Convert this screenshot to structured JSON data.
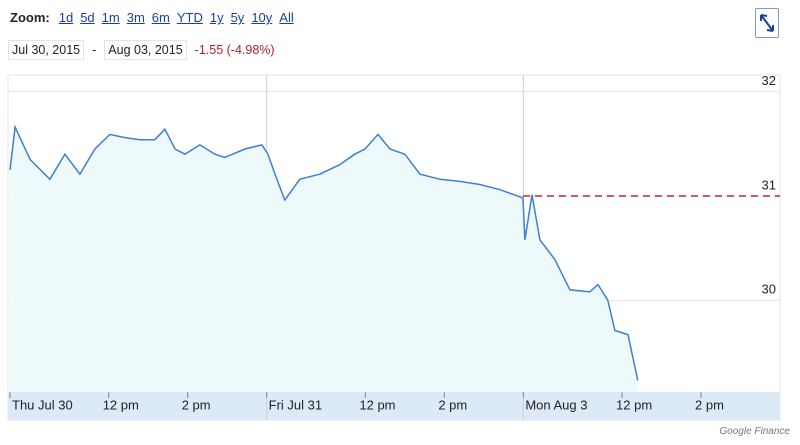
{
  "header": {
    "zoom_label": "Zoom:",
    "zoom_options": [
      "1d",
      "5d",
      "1m",
      "3m",
      "6m",
      "YTD",
      "1y",
      "5y",
      "10y",
      "All"
    ],
    "start_date": "Jul 30, 2015",
    "separator": "-",
    "end_date": "Aug 03, 2015",
    "change": "-1.55 (-4.98%)"
  },
  "chart_data": {
    "type": "line",
    "color": "#3d7fd0",
    "fill": "#eef9fb",
    "x": [
      0,
      0.13,
      0.51,
      1.01,
      1.39,
      1.77,
      2.15,
      2.53,
      2.91,
      3.29,
      3.67,
      3.92,
      4.18,
      4.43,
      4.81,
      5.19,
      5.44,
      5.95,
      6.38,
      6.53,
      6.71,
      6.96,
      7.34,
      7.85,
      8.35,
      8.73,
      8.99,
      9.32,
      9.62,
      10.0,
      10.38,
      10.89,
      11.39,
      11.9,
      12.41,
      12.78,
      12.99,
      13.04,
      13.22,
      13.42,
      13.8,
      14.18,
      14.68,
      14.89,
      15.14,
      15.32,
      15.65,
      15.9
    ],
    "values": [
      31.25,
      31.66,
      31.35,
      31.16,
      31.4,
      31.21,
      31.45,
      31.59,
      31.56,
      31.54,
      31.54,
      31.64,
      31.45,
      31.4,
      31.49,
      31.4,
      31.37,
      31.45,
      31.49,
      31.4,
      31.21,
      30.96,
      31.16,
      31.21,
      31.3,
      31.4,
      31.45,
      31.59,
      31.45,
      31.4,
      31.21,
      31.16,
      31.14,
      31.11,
      31.06,
      31.01,
      30.98,
      30.58,
      31.01,
      30.58,
      30.39,
      30.1,
      30.08,
      30.15,
      30.0,
      29.71,
      29.67,
      29.23
    ],
    "reference_line": 31,
    "reference_color": "#c0262d",
    "xlim": [
      0,
      19.5
    ],
    "ylim": [
      29.12,
      32.16
    ],
    "yticks": [
      30,
      31,
      32
    ],
    "grid": true,
    "xticks": [
      {
        "value": 0,
        "label": "Thu Jul 30"
      },
      {
        "value": 2.5,
        "label": "12 pm"
      },
      {
        "value": 4.5,
        "label": "2 pm"
      },
      {
        "value": 6.5,
        "label": "Fri Jul 31"
      },
      {
        "value": 9,
        "label": "12 pm"
      },
      {
        "value": 11,
        "label": "2 pm"
      },
      {
        "value": 13,
        "label": "Mon Aug 3"
      },
      {
        "value": 15.5,
        "label": "12 pm"
      },
      {
        "value": 17.5,
        "label": "2 pm"
      }
    ],
    "day_starts": [
      6.5,
      13
    ]
  },
  "footer": {
    "source": "Google Finance"
  }
}
